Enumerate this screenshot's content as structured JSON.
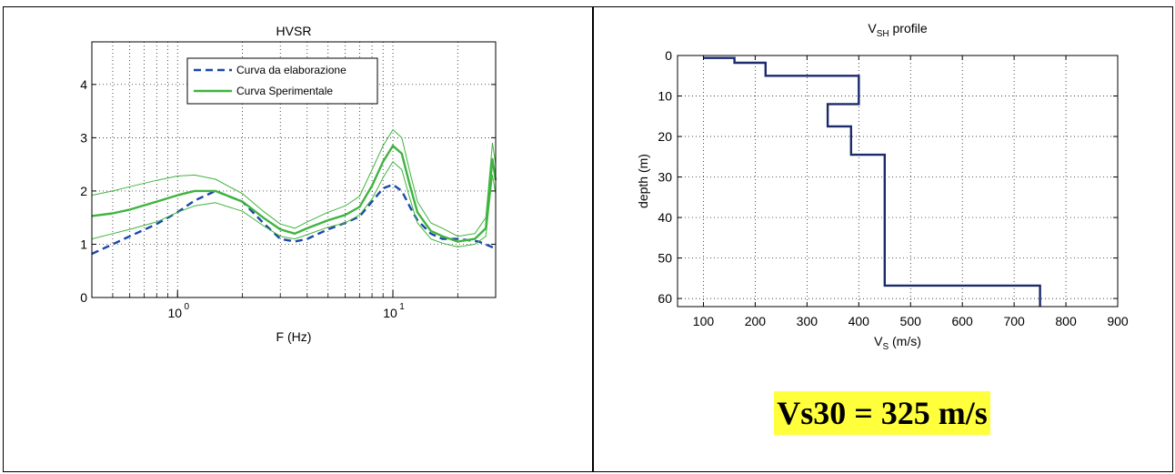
{
  "chart_data": [
    {
      "type": "line",
      "title": "HVSR",
      "xlabel": "F (Hz)",
      "ylabel": "",
      "xscale": "log",
      "xlim": [
        0.4,
        30
      ],
      "ylim": [
        0,
        4.8
      ],
      "grid": true,
      "legend_position": "top",
      "x_tick_labels": [
        "10",
        "10"
      ],
      "x_tick_exponents": [
        "0",
        "1"
      ],
      "y_tick_labels": [
        "0",
        "1",
        "2",
        "3",
        "4"
      ],
      "series": [
        {
          "name": "Curva da elaborazione",
          "color": "#1a47a8",
          "style": "dashed",
          "x": [
            0.4,
            0.5,
            0.6,
            0.8,
            1.0,
            1.2,
            1.5,
            2.0,
            2.5,
            3.0,
            3.5,
            4.0,
            5.0,
            6.0,
            7.0,
            8.0,
            9.0,
            10.0,
            11.0,
            12.0,
            13.0,
            15.0,
            17.0,
            20.0,
            25.0,
            30.0
          ],
          "y": [
            0.82,
            1.0,
            1.15,
            1.38,
            1.6,
            1.82,
            2.0,
            1.8,
            1.4,
            1.1,
            1.05,
            1.1,
            1.28,
            1.4,
            1.52,
            1.8,
            2.05,
            2.12,
            2.0,
            1.7,
            1.45,
            1.2,
            1.1,
            1.1,
            1.05,
            0.92
          ]
        },
        {
          "name": "Curva Sperimentale",
          "color": "#3fb43f",
          "style": "solid",
          "x": [
            0.4,
            0.5,
            0.6,
            0.8,
            1.0,
            1.2,
            1.5,
            2.0,
            2.5,
            3.0,
            3.5,
            4.0,
            5.0,
            6.0,
            7.0,
            8.0,
            9.0,
            10.0,
            11.0,
            12.0,
            13.0,
            15.0,
            17.0,
            20.0,
            24.0,
            27.0,
            29.0,
            30.0
          ],
          "y": [
            1.53,
            1.58,
            1.65,
            1.8,
            1.92,
            2.0,
            2.0,
            1.8,
            1.5,
            1.28,
            1.2,
            1.3,
            1.45,
            1.55,
            1.7,
            2.1,
            2.55,
            2.85,
            2.7,
            2.1,
            1.6,
            1.25,
            1.15,
            1.05,
            1.1,
            1.3,
            2.6,
            2.2
          ]
        },
        {
          "name": "",
          "color": "#3fb43f",
          "style": "thin",
          "x": [
            0.4,
            0.5,
            0.6,
            0.8,
            1.0,
            1.2,
            1.5,
            2.0,
            2.5,
            3.0,
            3.5,
            4.0,
            5.0,
            6.0,
            7.0,
            8.0,
            9.0,
            10.0,
            11.0,
            12.0,
            13.0,
            15.0,
            17.0,
            20.0,
            24.0,
            27.0,
            29.0,
            30.0
          ],
          "y": [
            1.92,
            2.0,
            2.08,
            2.2,
            2.28,
            2.3,
            2.22,
            1.95,
            1.62,
            1.38,
            1.3,
            1.42,
            1.6,
            1.72,
            1.9,
            2.4,
            2.85,
            3.15,
            3.0,
            2.35,
            1.8,
            1.4,
            1.3,
            1.15,
            1.2,
            1.5,
            2.9,
            2.5
          ]
        },
        {
          "name": "",
          "color": "#3fb43f",
          "style": "thin",
          "x": [
            0.4,
            0.5,
            0.6,
            0.8,
            1.0,
            1.2,
            1.5,
            2.0,
            2.5,
            3.0,
            3.5,
            4.0,
            5.0,
            6.0,
            7.0,
            8.0,
            9.0,
            10.0,
            11.0,
            12.0,
            13.0,
            15.0,
            17.0,
            20.0,
            24.0,
            27.0,
            29.0,
            30.0
          ],
          "y": [
            1.1,
            1.2,
            1.28,
            1.42,
            1.6,
            1.72,
            1.78,
            1.62,
            1.35,
            1.15,
            1.1,
            1.18,
            1.32,
            1.4,
            1.55,
            1.85,
            2.25,
            2.55,
            2.4,
            1.85,
            1.4,
            1.1,
            1.02,
            0.95,
            1.0,
            1.15,
            2.3,
            1.95
          ]
        }
      ]
    },
    {
      "type": "line",
      "title": "V",
      "title_subscript": "SH",
      "title_suffix": " profile",
      "xlabel": "V",
      "xlabel_subscript": "S",
      "xlabel_suffix": " (m/s)",
      "ylabel": "depth (m)",
      "xlim": [
        50,
        900
      ],
      "ylim": [
        62,
        0
      ],
      "y_inverted": true,
      "grid": true,
      "x_tick_labels": [
        "100",
        "200",
        "300",
        "400",
        "500",
        "600",
        "700",
        "800",
        "900"
      ],
      "y_tick_labels": [
        "0",
        "10",
        "20",
        "30",
        "40",
        "50",
        "60"
      ],
      "series": [
        {
          "name": "",
          "color": "#1a2a6c",
          "style": "step",
          "vs": [
            100,
            160,
            220,
            400,
            340,
            385,
            450,
            750
          ],
          "layer_bottoms": [
            0,
            1.8,
            5,
            12,
            17.5,
            24.5,
            56.8,
            62
          ],
          "x": [
            100,
            160,
            160,
            220,
            220,
            400,
            400,
            340,
            340,
            385,
            385,
            450,
            450,
            750,
            750
          ],
          "y": [
            0.6,
            0.6,
            1.8,
            1.8,
            5,
            5,
            12,
            12,
            17.5,
            17.5,
            24.5,
            24.5,
            56.8,
            56.8,
            62
          ]
        }
      ]
    }
  ],
  "annotation": {
    "text": "Vs30 = 325 m/s",
    "highlight_color": "#ffff3c"
  }
}
